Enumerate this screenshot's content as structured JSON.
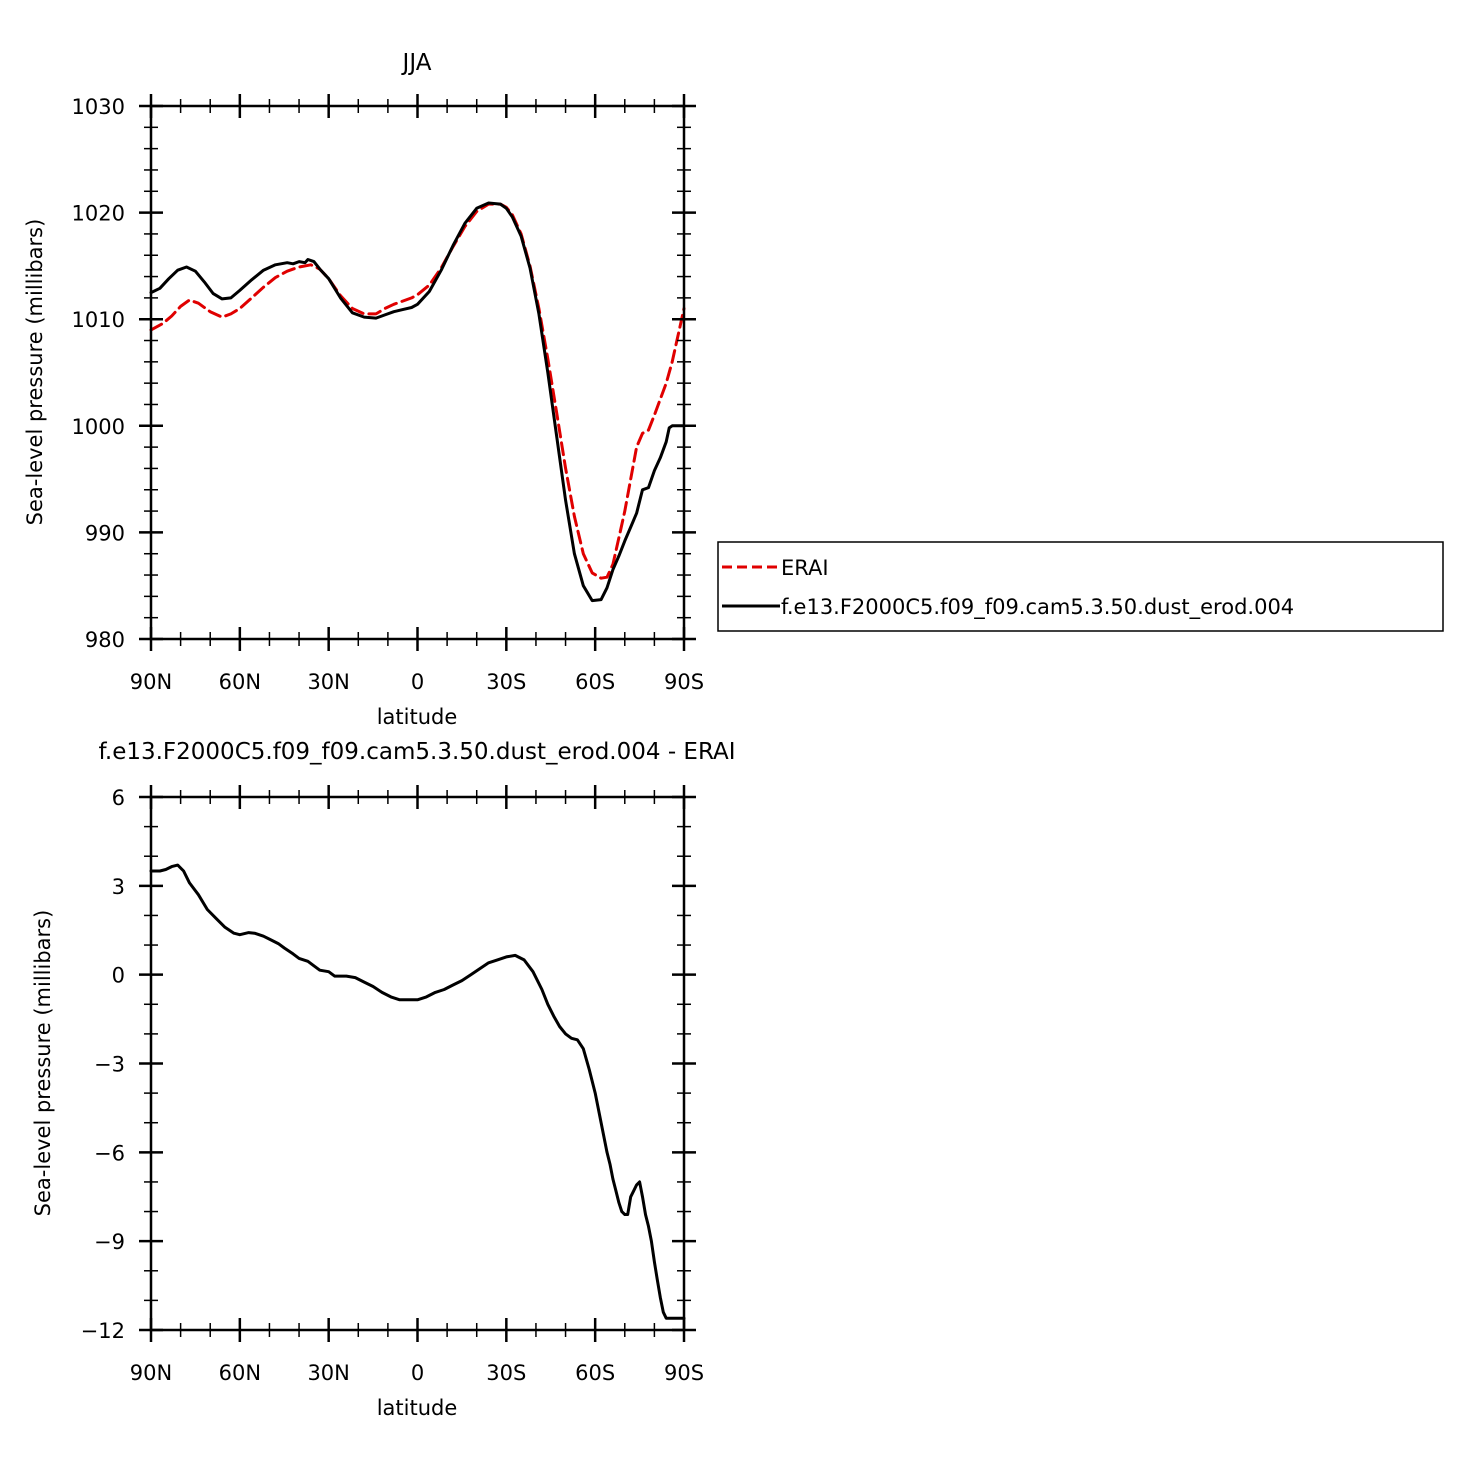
{
  "chart_data": [
    {
      "type": "line",
      "title": "JJA",
      "xlabel": "latitude",
      "ylabel": "Sea-level pressure (millibars)",
      "xlim": [
        -90,
        90
      ],
      "ylim": [
        980,
        1030
      ],
      "x_ticks": [
        -90,
        -60,
        -30,
        0,
        30,
        60,
        90
      ],
      "x_tick_labels": [
        "90N",
        "60N",
        "30N",
        "0",
        "30S",
        "60S",
        "90S"
      ],
      "y_ticks": [
        980,
        990,
        1000,
        1010,
        1020,
        1030
      ],
      "y_tick_labels": [
        "980",
        "990",
        "1000",
        "1010",
        "1020",
        "1030"
      ],
      "grid": false,
      "legend_placement": "right",
      "series": [
        {
          "name": "ERAI",
          "color": "#e00000",
          "dash": "dashed",
          "x": [
            -90,
            -86,
            -83,
            -80,
            -77,
            -74,
            -70,
            -66,
            -63,
            -60,
            -56,
            -52,
            -48,
            -44,
            -40,
            -36,
            -33,
            -30,
            -26,
            -22,
            -18,
            -14,
            -11,
            -8,
            -5,
            -2,
            0,
            4,
            8,
            12,
            16,
            20,
            24,
            28,
            30,
            32,
            35,
            38,
            41,
            44,
            47,
            50,
            53,
            56,
            59,
            62,
            64,
            66,
            68,
            70,
            72,
            74,
            76,
            78,
            80,
            82,
            84,
            86,
            88,
            90
          ],
          "y": [
            1009.0,
            1009.6,
            1010.3,
            1011.2,
            1011.8,
            1011.5,
            1010.7,
            1010.2,
            1010.5,
            1011.0,
            1012.0,
            1013.0,
            1013.9,
            1014.5,
            1014.9,
            1015.1,
            1014.7,
            1013.8,
            1012.2,
            1011.0,
            1010.5,
            1010.5,
            1011.0,
            1011.4,
            1011.7,
            1012.0,
            1012.3,
            1013.2,
            1014.8,
            1016.8,
            1018.7,
            1020.1,
            1020.8,
            1020.8,
            1020.5,
            1019.8,
            1018.0,
            1015.0,
            1011.0,
            1006.3,
            1001.2,
            996.0,
            991.5,
            988.0,
            986.2,
            985.7,
            985.8,
            987.0,
            989.5,
            992.0,
            995.0,
            998.0,
            999.3,
            999.6,
            1001.0,
            1002.5,
            1004.0,
            1006.0,
            1008.5,
            1011.0
          ]
        },
        {
          "name": "f.e13.F2000C5.f09_f09.cam5.3.50.dust_erod.004",
          "color": "#000000",
          "dash": "solid",
          "x": [
            -90,
            -87,
            -84,
            -81,
            -78,
            -75,
            -72,
            -69,
            -66,
            -63,
            -60,
            -56,
            -52,
            -48,
            -44,
            -42,
            -40,
            -38,
            -37,
            -35,
            -33,
            -30,
            -26,
            -22,
            -18,
            -14,
            -11,
            -8,
            -5,
            -2,
            0,
            4,
            8,
            12,
            16,
            20,
            24,
            28,
            30,
            32,
            35,
            38,
            41,
            44,
            47,
            50,
            53,
            56,
            59,
            62,
            64,
            66,
            68,
            70,
            72,
            74,
            76,
            78,
            80,
            82,
            84,
            85,
            86,
            88,
            90
          ],
          "y": [
            1012.5,
            1012.9,
            1013.8,
            1014.6,
            1014.9,
            1014.5,
            1013.5,
            1012.4,
            1011.9,
            1012.0,
            1012.7,
            1013.7,
            1014.6,
            1015.1,
            1015.3,
            1015.2,
            1015.4,
            1015.3,
            1015.6,
            1015.4,
            1014.7,
            1013.8,
            1012.0,
            1010.6,
            1010.2,
            1010.1,
            1010.4,
            1010.7,
            1010.9,
            1011.1,
            1011.4,
            1012.6,
            1014.6,
            1016.9,
            1019.0,
            1020.4,
            1020.9,
            1020.8,
            1020.4,
            1019.6,
            1017.8,
            1014.8,
            1010.5,
            1005.0,
            999.0,
            993.0,
            988.0,
            985.0,
            983.6,
            983.7,
            984.8,
            986.5,
            987.8,
            989.2,
            990.5,
            991.8,
            994.0,
            994.2,
            995.8,
            997.0,
            998.5,
            999.8,
            1000.0,
            1000.0,
            1000.0
          ]
        }
      ]
    },
    {
      "type": "line",
      "title": "f.e13.F2000C5.f09_f09.cam5.3.50.dust_erod.004 - ERAI",
      "xlabel": "latitude",
      "ylabel": "Sea-level pressure (millibars)",
      "xlim": [
        -90,
        90
      ],
      "ylim": [
        -12,
        6
      ],
      "x_ticks": [
        -90,
        -60,
        -30,
        0,
        30,
        60,
        90
      ],
      "x_tick_labels": [
        "90N",
        "60N",
        "30N",
        "0",
        "30S",
        "60S",
        "90S"
      ],
      "y_ticks": [
        -12,
        -9,
        -6,
        -3,
        0,
        3,
        6
      ],
      "y_tick_labels": [
        "−12",
        "−9",
        "−6",
        "−3",
        "0",
        "3",
        "6"
      ],
      "grid": false,
      "series": [
        {
          "color": "#000000",
          "dash": "solid",
          "x": [
            -90,
            -87,
            -85,
            -83,
            -81,
            -79,
            -77,
            -74,
            -71,
            -68,
            -65,
            -62,
            -60,
            -57,
            -55,
            -52,
            -50,
            -47,
            -45,
            -42,
            -40,
            -37,
            -35,
            -33,
            -30,
            -28,
            -26,
            -24,
            -21,
            -18,
            -15,
            -12,
            -9,
            -6,
            -3,
            0,
            3,
            6,
            9,
            12,
            15,
            18,
            21,
            24,
            27,
            30,
            33,
            36,
            39,
            42,
            44,
            46,
            48,
            50,
            52,
            54,
            56,
            58,
            60,
            62,
            64,
            65,
            66,
            67,
            68,
            69,
            70,
            71,
            72,
            73,
            74,
            75,
            76,
            77,
            78,
            79,
            80,
            81,
            82,
            83,
            84,
            85,
            86,
            87,
            88,
            89,
            90
          ],
          "y": [
            3.5,
            3.5,
            3.55,
            3.65,
            3.7,
            3.5,
            3.1,
            2.7,
            2.2,
            1.9,
            1.6,
            1.4,
            1.35,
            1.42,
            1.4,
            1.3,
            1.2,
            1.05,
            0.9,
            0.7,
            0.55,
            0.45,
            0.3,
            0.15,
            0.1,
            -0.05,
            -0.05,
            -0.05,
            -0.1,
            -0.25,
            -0.4,
            -0.6,
            -0.75,
            -0.85,
            -0.85,
            -0.85,
            -0.75,
            -0.6,
            -0.5,
            -0.35,
            -0.2,
            0.0,
            0.2,
            0.4,
            0.5,
            0.6,
            0.65,
            0.5,
            0.1,
            -0.5,
            -1.0,
            -1.4,
            -1.75,
            -2.0,
            -2.15,
            -2.2,
            -2.5,
            -3.2,
            -4.0,
            -5.0,
            -6.0,
            -6.4,
            -6.9,
            -7.3,
            -7.7,
            -8.0,
            -8.1,
            -8.1,
            -7.5,
            -7.3,
            -7.1,
            -7.0,
            -7.5,
            -8.1,
            -8.5,
            -9.0,
            -9.7,
            -10.3,
            -10.9,
            -11.4,
            -11.6,
            -11.6,
            -11.6,
            -11.6,
            -11.6,
            -11.6,
            -11.6
          ]
        }
      ]
    }
  ]
}
